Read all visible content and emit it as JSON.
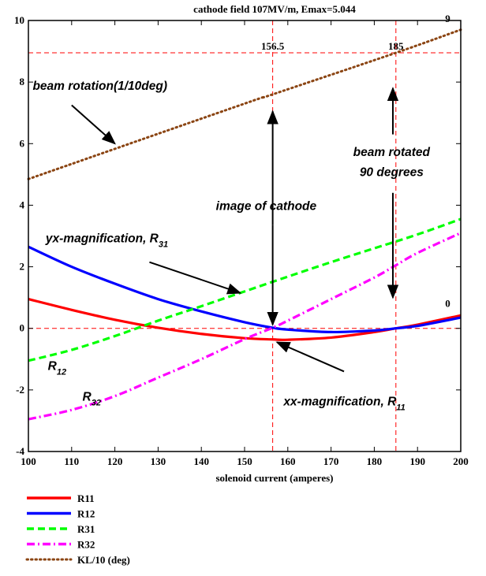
{
  "chart_data": {
    "type": "line",
    "title": "cathode field 107MV/m, Emax=5.044",
    "xlabel": "solenoid current (amperes)",
    "ylabel": "",
    "xlim": [
      100,
      200
    ],
    "ylim": [
      -4,
      10
    ],
    "xticks": [
      100,
      110,
      120,
      130,
      140,
      150,
      160,
      170,
      180,
      190,
      200
    ],
    "yticks": [
      -4,
      -2,
      0,
      2,
      4,
      6,
      8,
      10
    ],
    "grid": false,
    "legend_position": "bottom-left-outside",
    "series": [
      {
        "name": "R11",
        "color": "#ff0000",
        "dash": "solid",
        "x": [
          100,
          110,
          120,
          130,
          140,
          150,
          156.5,
          160,
          170,
          180,
          185,
          190,
          200
        ],
        "y": [
          0.95,
          0.6,
          0.28,
          0.02,
          -0.18,
          -0.32,
          -0.36,
          -0.37,
          -0.3,
          -0.12,
          0.0,
          0.12,
          0.42
        ]
      },
      {
        "name": "R12",
        "color": "#0000ff",
        "dash": "solid",
        "x": [
          100,
          110,
          120,
          130,
          140,
          150,
          156.5,
          160,
          170,
          180,
          185,
          190,
          200
        ],
        "y": [
          2.65,
          2.0,
          1.45,
          0.95,
          0.55,
          0.2,
          0.02,
          -0.04,
          -0.12,
          -0.07,
          0.0,
          0.08,
          0.35
        ]
      },
      {
        "name": "R31",
        "color": "#00ff00",
        "dash": "dashed",
        "x": [
          100,
          110,
          120,
          130,
          140,
          150,
          160,
          170,
          180,
          190,
          200
        ],
        "y": [
          -1.05,
          -0.7,
          -0.25,
          0.25,
          0.72,
          1.2,
          1.68,
          2.15,
          2.6,
          3.05,
          3.55
        ]
      },
      {
        "name": "R32",
        "color": "#ff00ff",
        "dash": "dashdot",
        "x": [
          100,
          110,
          120,
          130,
          140,
          150,
          156.5,
          160,
          170,
          180,
          185,
          190,
          200
        ],
        "y": [
          -2.95,
          -2.65,
          -2.2,
          -1.6,
          -1.0,
          -0.35,
          0.02,
          0.25,
          0.95,
          1.65,
          2.05,
          2.45,
          3.1
        ]
      },
      {
        "name": "KL/10 (deg)",
        "color": "#8b4513",
        "dash": "dotted",
        "x": [
          100,
          150,
          156.5,
          185,
          200
        ],
        "y": [
          4.85,
          7.3,
          7.6,
          8.95,
          9.7
        ]
      }
    ],
    "reference_lines": {
      "horizontal": [
        0,
        8.95
      ],
      "vertical": [
        156.5,
        185
      ],
      "color": "#ff0000"
    },
    "text_labels": [
      {
        "text": "156.5",
        "x": 156.5,
        "y": 8.95,
        "anchor": "middle"
      },
      {
        "text": "185",
        "x": 185,
        "y": 8.95,
        "anchor": "middle"
      },
      {
        "text": "9",
        "x": 197,
        "y": 9.85,
        "anchor": "middle"
      },
      {
        "text": "0",
        "x": 197,
        "y": 0.6,
        "anchor": "middle"
      }
    ],
    "annotations": [
      {
        "text": "beam rotation(1/10deg)",
        "x": 101,
        "y": 7.75
      },
      {
        "text": "beam rotated",
        "x": 184,
        "y": 5.6,
        "anchor": "middle"
      },
      {
        "text": "90 degrees",
        "x": 184,
        "y": 4.95,
        "anchor": "middle"
      },
      {
        "text": "image of cathode",
        "x": 155,
        "y": 3.85,
        "anchor": "middle"
      },
      {
        "text": "yx-magnification, R",
        "sub": "31",
        "x": 104,
        "y": 2.8
      },
      {
        "text": "R",
        "sub": "12",
        "x": 104.5,
        "y": -1.35
      },
      {
        "text": "R",
        "sub": "32",
        "x": 112.5,
        "y": -2.35
      },
      {
        "text": "xx-magnification, R",
        "sub": "11",
        "x": 159,
        "y": -2.5
      }
    ],
    "arrows": [
      {
        "from": [
          110,
          7.25
        ],
        "to": [
          120,
          6.0
        ]
      },
      {
        "from": [
          128,
          2.15
        ],
        "to": [
          149,
          1.15
        ]
      },
      {
        "from": [
          173,
          -1.4
        ],
        "to": [
          157.5,
          -0.45
        ]
      },
      {
        "from": [
          156.5,
          3.35
        ],
        "to": [
          156.5,
          7.05
        ]
      },
      {
        "from": [
          156.5,
          3.35
        ],
        "to": [
          156.5,
          0.12
        ]
      },
      {
        "from": [
          184.3,
          6.3
        ],
        "to": [
          184.3,
          7.8
        ]
      },
      {
        "from": [
          184.3,
          4.4
        ],
        "to": [
          184.3,
          1.0
        ]
      }
    ]
  }
}
